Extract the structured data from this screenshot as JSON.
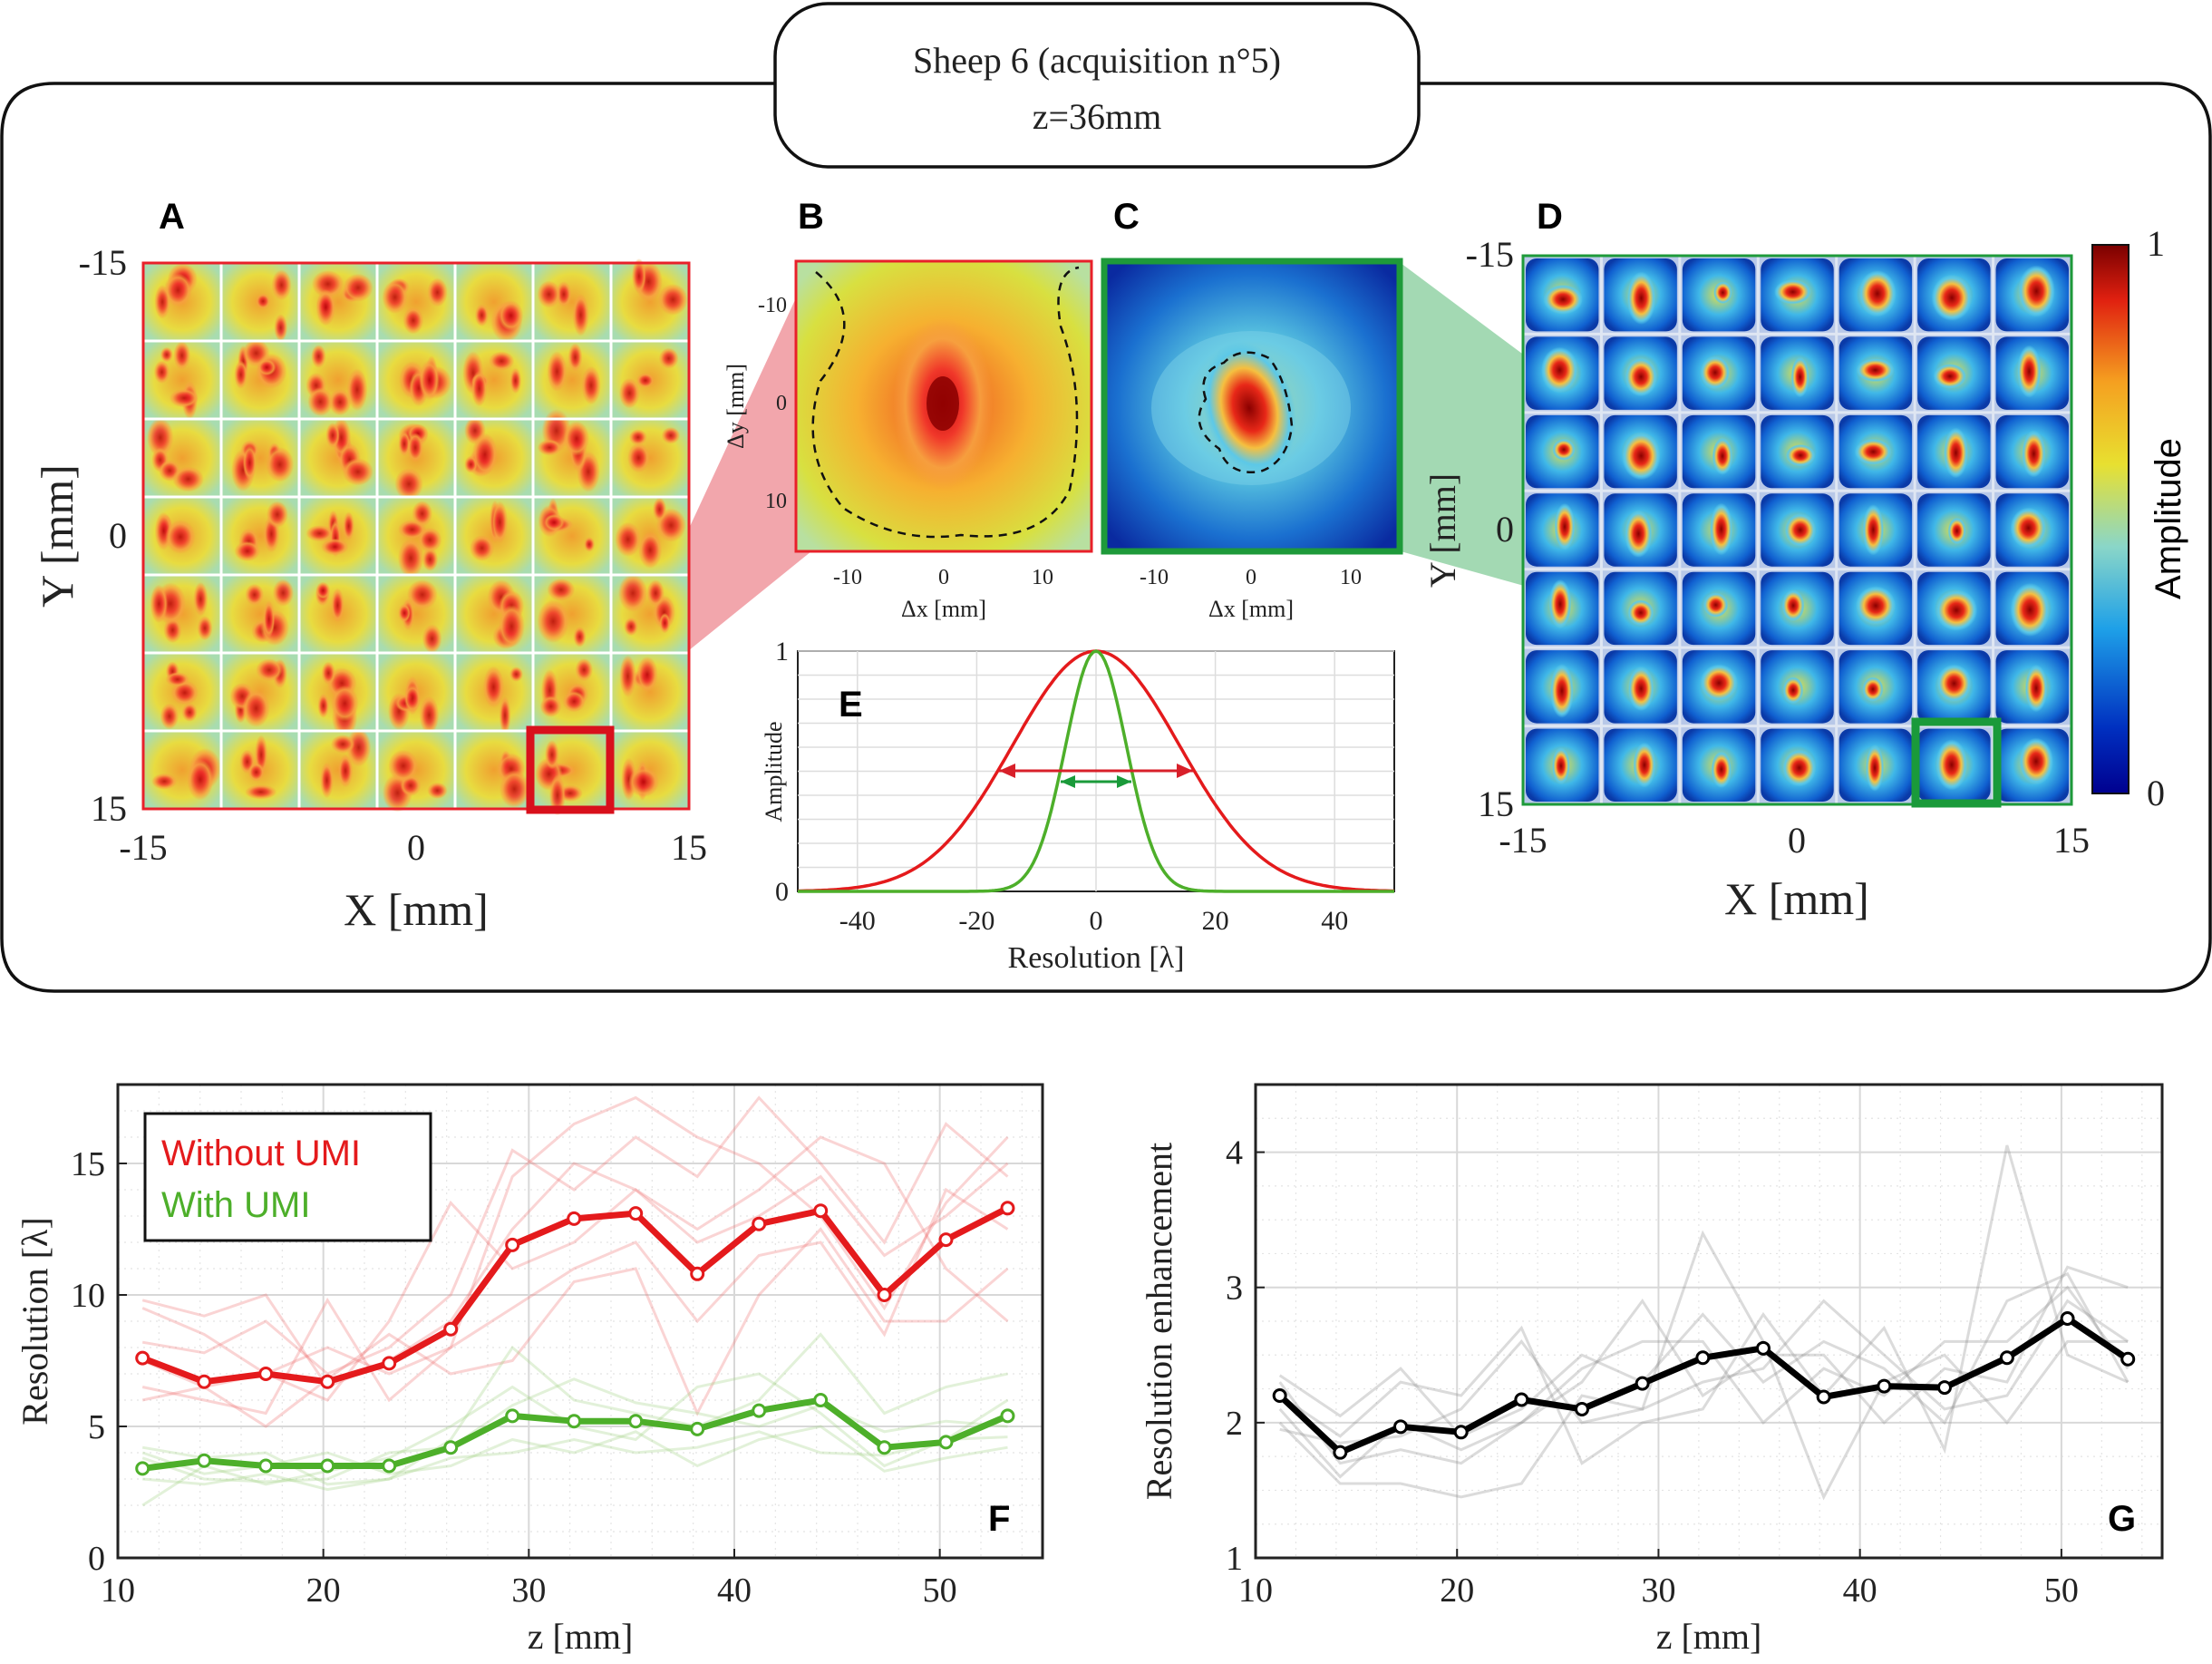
{
  "header": {
    "line1": "Sheep 6 (acquisition n°5)",
    "line2": "z=36mm"
  },
  "colors": {
    "without": "#e41a1c",
    "with": "#4daf2a",
    "enh": "#000000",
    "red_box": "#e8202a",
    "green_box": "#2a9a3a"
  },
  "panelA": {
    "letter": "A",
    "xlabel": "X [mm]",
    "ylabel": "Y [mm]",
    "xticks": [
      "-15",
      "0",
      "15"
    ],
    "yticks": [
      "-15",
      "0",
      "15"
    ],
    "grid": 7
  },
  "panelB": {
    "letter": "B",
    "xlabel": "Δx [mm]",
    "ylabel": "Δy [mm]",
    "xticks": [
      "-10",
      "0",
      "10"
    ],
    "yticks": [
      "-10",
      "0",
      "10"
    ]
  },
  "panelC": {
    "letter": "C",
    "xlabel": "Δx [mm]",
    "xticks": [
      "-10",
      "0",
      "10"
    ]
  },
  "panelD": {
    "letter": "D",
    "xlabel": "X [mm]",
    "ylabel": "Y [mm]",
    "xticks": [
      "-15",
      "0",
      "15"
    ],
    "yticks": [
      "-15",
      "0",
      "15"
    ],
    "colorbar": {
      "label": "Amplitude",
      "max": "1",
      "min": "0"
    }
  },
  "chart_data": [
    {
      "id": "E",
      "type": "line",
      "letter": "E",
      "xlabel": "Resolution [λ]",
      "ylabel": "Amplitude",
      "xlim": [
        -50,
        50
      ],
      "ylim": [
        0,
        1
      ],
      "xticks": [
        "-40",
        "-20",
        "0",
        "20",
        "40"
      ],
      "yticks": [
        "0",
        "1"
      ],
      "series": [
        {
          "name": "Without UMI",
          "type": "gaussian",
          "fwhm": 33
        },
        {
          "name": "With UMI",
          "type": "gaussian",
          "fwhm": 12
        }
      ]
    },
    {
      "id": "F",
      "type": "line",
      "letter": "F",
      "xlabel": "z [mm]",
      "ylabel": "Resolution [λ]",
      "xlim": [
        10,
        55
      ],
      "ylim": [
        0,
        18
      ],
      "xticks": [
        "10",
        "20",
        "30",
        "40",
        "50"
      ],
      "yticks": [
        "0",
        "5",
        "10",
        "15"
      ],
      "legend": [
        "Without UMI",
        "With UMI"
      ],
      "x": [
        11.2,
        14.2,
        17.2,
        20.2,
        23.2,
        26.2,
        29.2,
        32.2,
        35.2,
        38.2,
        41.2,
        44.2,
        47.3,
        50.3,
        53.3
      ],
      "series": [
        {
          "name": "Without UMI",
          "values": [
            7.6,
            6.7,
            7.0,
            6.7,
            7.4,
            8.7,
            11.9,
            12.9,
            13.1,
            10.8,
            12.7,
            13.2,
            10.0,
            12.1,
            13.3
          ]
        },
        {
          "name": "With UMI",
          "values": [
            3.4,
            3.7,
            3.5,
            3.5,
            3.5,
            4.2,
            5.4,
            5.2,
            5.2,
            4.9,
            5.6,
            6.0,
            4.2,
            4.4,
            5.4
          ]
        }
      ],
      "faint_without": [
        [
          9.8,
          9.2,
          10.0,
          6.5,
          7.5,
          9.0,
          12.5,
          15.0,
          14.0,
          12.0,
          13.0,
          14.5,
          11.5,
          13.0,
          15.0
        ],
        [
          6.5,
          6.0,
          5.5,
          9.8,
          6.0,
          8.0,
          14.5,
          16.5,
          17.5,
          16.0,
          15.0,
          13.0,
          9.5,
          13.5,
          16.0
        ],
        [
          9.5,
          8.5,
          7.0,
          6.0,
          9.0,
          13.5,
          11.0,
          12.0,
          14.0,
          12.5,
          14.0,
          16.0,
          15.0,
          11.0,
          9.0
        ],
        [
          7.5,
          6.5,
          7.0,
          8.0,
          7.0,
          8.0,
          9.5,
          11.0,
          12.0,
          9.0,
          11.5,
          12.0,
          8.5,
          14.0,
          12.5
        ],
        [
          8.2,
          7.8,
          9.0,
          7.0,
          8.0,
          10.0,
          15.5,
          14.0,
          16.0,
          14.5,
          17.5,
          15.0,
          12.0,
          16.5,
          14.5
        ],
        [
          6.0,
          6.5,
          5.0,
          6.8,
          8.5,
          7.0,
          7.5,
          10.5,
          11.0,
          5.5,
          10.0,
          12.5,
          9.0,
          9.0,
          11.0
        ]
      ],
      "faint_with": [
        [
          4.2,
          3.8,
          4.0,
          2.8,
          3.0,
          4.5,
          8.0,
          6.0,
          5.5,
          5.0,
          6.0,
          8.5,
          5.5,
          6.5,
          7.0
        ],
        [
          2.0,
          3.5,
          2.8,
          3.3,
          3.8,
          5.0,
          6.5,
          5.0,
          4.5,
          6.5,
          7.0,
          5.5,
          3.5,
          4.5,
          6.0
        ],
        [
          4.0,
          3.2,
          3.5,
          4.0,
          3.2,
          3.5,
          4.5,
          4.0,
          4.8,
          3.5,
          4.5,
          5.0,
          3.3,
          3.8,
          4.2
        ],
        [
          3.8,
          3.0,
          2.9,
          3.0,
          4.0,
          4.2,
          5.8,
          6.8,
          5.9,
          5.5,
          5.0,
          5.8,
          4.8,
          5.2,
          5.0
        ],
        [
          3.0,
          2.8,
          3.2,
          2.6,
          3.0,
          3.8,
          4.0,
          4.5,
          4.0,
          4.2,
          4.8,
          4.0,
          3.9,
          4.5,
          4.6
        ]
      ]
    },
    {
      "id": "G",
      "type": "line",
      "letter": "G",
      "xlabel": "z [mm]",
      "ylabel": "Resolution enhancement",
      "xlim": [
        10,
        55
      ],
      "ylim": [
        1,
        4.5
      ],
      "xticks": [
        "10",
        "20",
        "30",
        "40",
        "50"
      ],
      "yticks": [
        "1",
        "2",
        "3",
        "4"
      ],
      "x": [
        11.2,
        14.2,
        17.2,
        20.2,
        23.2,
        26.2,
        29.2,
        32.2,
        35.2,
        38.2,
        41.2,
        44.2,
        47.3,
        50.3,
        53.3
      ],
      "series": [
        {
          "name": "Resolution enhancement",
          "values": [
            2.2,
            1.78,
            1.97,
            1.93,
            2.17,
            2.1,
            2.29,
            2.48,
            2.55,
            2.19,
            2.27,
            2.26,
            2.48,
            2.77,
            2.47
          ]
        }
      ],
      "faint": [
        [
          2.35,
          2.05,
          2.4,
          1.9,
          2.1,
          2.5,
          2.3,
          2.8,
          2.3,
          2.6,
          2.4,
          2.0,
          2.9,
          3.1,
          2.3
        ],
        [
          2.0,
          1.55,
          1.55,
          1.45,
          1.55,
          2.2,
          2.1,
          3.4,
          2.6,
          1.45,
          2.3,
          2.5,
          2.0,
          2.6,
          2.6
        ],
        [
          2.2,
          1.9,
          2.3,
          2.2,
          2.7,
          1.7,
          2.0,
          2.1,
          2.8,
          2.2,
          2.7,
          1.8,
          4.05,
          2.5,
          2.3
        ],
        [
          2.3,
          1.7,
          1.8,
          1.7,
          2.0,
          2.3,
          2.9,
          2.2,
          2.5,
          2.5,
          2.0,
          2.4,
          2.3,
          3.15,
          3.0
        ],
        [
          1.95,
          1.85,
          1.9,
          2.1,
          2.6,
          2.0,
          2.1,
          2.3,
          2.4,
          2.9,
          2.5,
          2.1,
          2.2,
          2.9,
          2.6
        ],
        [
          2.1,
          1.6,
          2.0,
          1.8,
          2.0,
          2.4,
          2.6,
          2.6,
          2.0,
          2.4,
          2.2,
          2.6,
          2.6,
          3.0,
          2.4
        ]
      ]
    }
  ]
}
